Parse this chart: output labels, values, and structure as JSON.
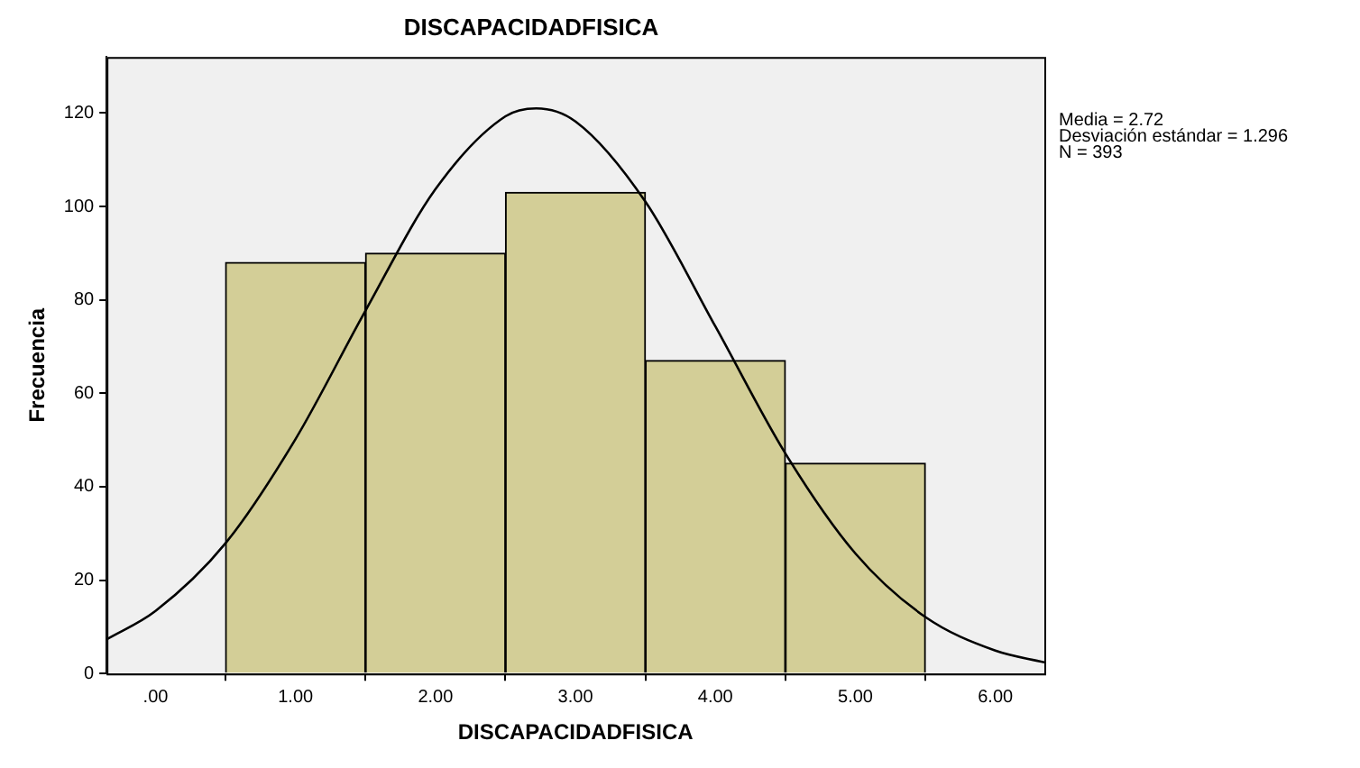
{
  "chart_data": {
    "type": "histogram",
    "title": "DISCAPACIDADFISICA",
    "xlabel": "DISCAPACIDADFISICA",
    "ylabel": "Frecuencia",
    "annotations": [
      "Media = 2.72",
      "Desviación estándar = 1.296",
      "N = 393"
    ],
    "series": [
      {
        "bins": [
          0.5,
          1.5,
          2.5,
          3.5,
          4.5,
          5.5
        ],
        "values": [
          88,
          90,
          103,
          67,
          45
        ],
        "color": "#d3ce97"
      },
      {
        "type": "line",
        "x": [
          -0.35,
          0,
          0.5,
          1,
          1.5,
          2,
          2.5,
          2.72,
          3,
          3.5,
          4,
          4.5,
          5,
          5.5,
          6,
          6.35
        ],
        "values": [
          7.3,
          13.4,
          27.9,
          50.2,
          77.7,
          103.7,
          119.3,
          121,
          118.2,
          101,
          74.3,
          47.1,
          25.7,
          12.1,
          4.9,
          2.4
        ],
        "color": "#000000"
      }
    ],
    "xlim": [
      -0.35,
      6.35
    ],
    "xticks": [
      {
        "value": 0,
        "label": ".00"
      },
      {
        "value": 1,
        "label": "1.00"
      },
      {
        "value": 2,
        "label": "2.00"
      },
      {
        "value": 3,
        "label": "3.00"
      },
      {
        "value": 4,
        "label": "4.00"
      },
      {
        "value": 5,
        "label": "5.00"
      },
      {
        "value": 6,
        "label": "6.00"
      }
    ],
    "ylim": [
      0,
      132
    ],
    "yticks": [
      0,
      20,
      40,
      60,
      80,
      100,
      120
    ],
    "grid": false,
    "legend": false,
    "marker": "none",
    "line_style": "solid"
  }
}
